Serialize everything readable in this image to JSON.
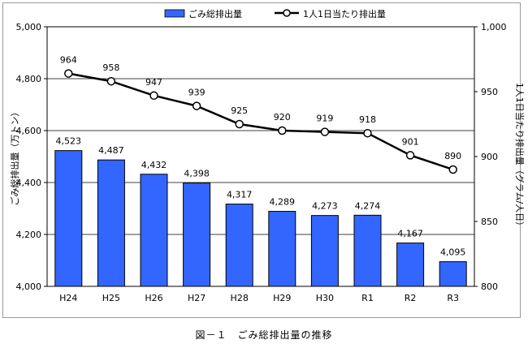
{
  "chart_data": {
    "type": "bar",
    "categories": [
      "H24",
      "H25",
      "H26",
      "H27",
      "H28",
      "H29",
      "H30",
      "R1",
      "R2",
      "R3"
    ],
    "series": [
      {
        "name": "ごみ総排出量",
        "kind": "bar",
        "axis": "left",
        "values": [
          4523,
          4487,
          4432,
          4398,
          4317,
          4289,
          4273,
          4274,
          4167,
          4095
        ],
        "labels": [
          "4,523",
          "4,487",
          "4,432",
          "4,398",
          "4,317",
          "4,289",
          "4,273",
          "4,274",
          "4,167",
          "4,095"
        ],
        "color": "#3366ff"
      },
      {
        "name": "1人1日当たり排出量",
        "kind": "line",
        "axis": "right",
        "values": [
          964,
          958,
          947,
          939,
          925,
          920,
          919,
          918,
          901,
          890
        ],
        "labels": [
          "964",
          "958",
          "947",
          "939",
          "925",
          "920",
          "919",
          "918",
          "901",
          "890"
        ],
        "color": "#000000"
      }
    ],
    "ylabel": "ごみ総排出量（万トン）",
    "y2label": "1人1日当たり排出量（グラム/人日）",
    "ylim": [
      4000,
      5000
    ],
    "y2lim": [
      800,
      1000
    ],
    "yticks": [
      "4,000",
      "4,200",
      "4,400",
      "4,600",
      "4,800",
      "5,000"
    ],
    "y2ticks": [
      "800",
      "850",
      "900",
      "950",
      "1,000"
    ],
    "grid": true,
    "legend_position": "top"
  },
  "caption": "図－１　ごみ総排出量の推移"
}
